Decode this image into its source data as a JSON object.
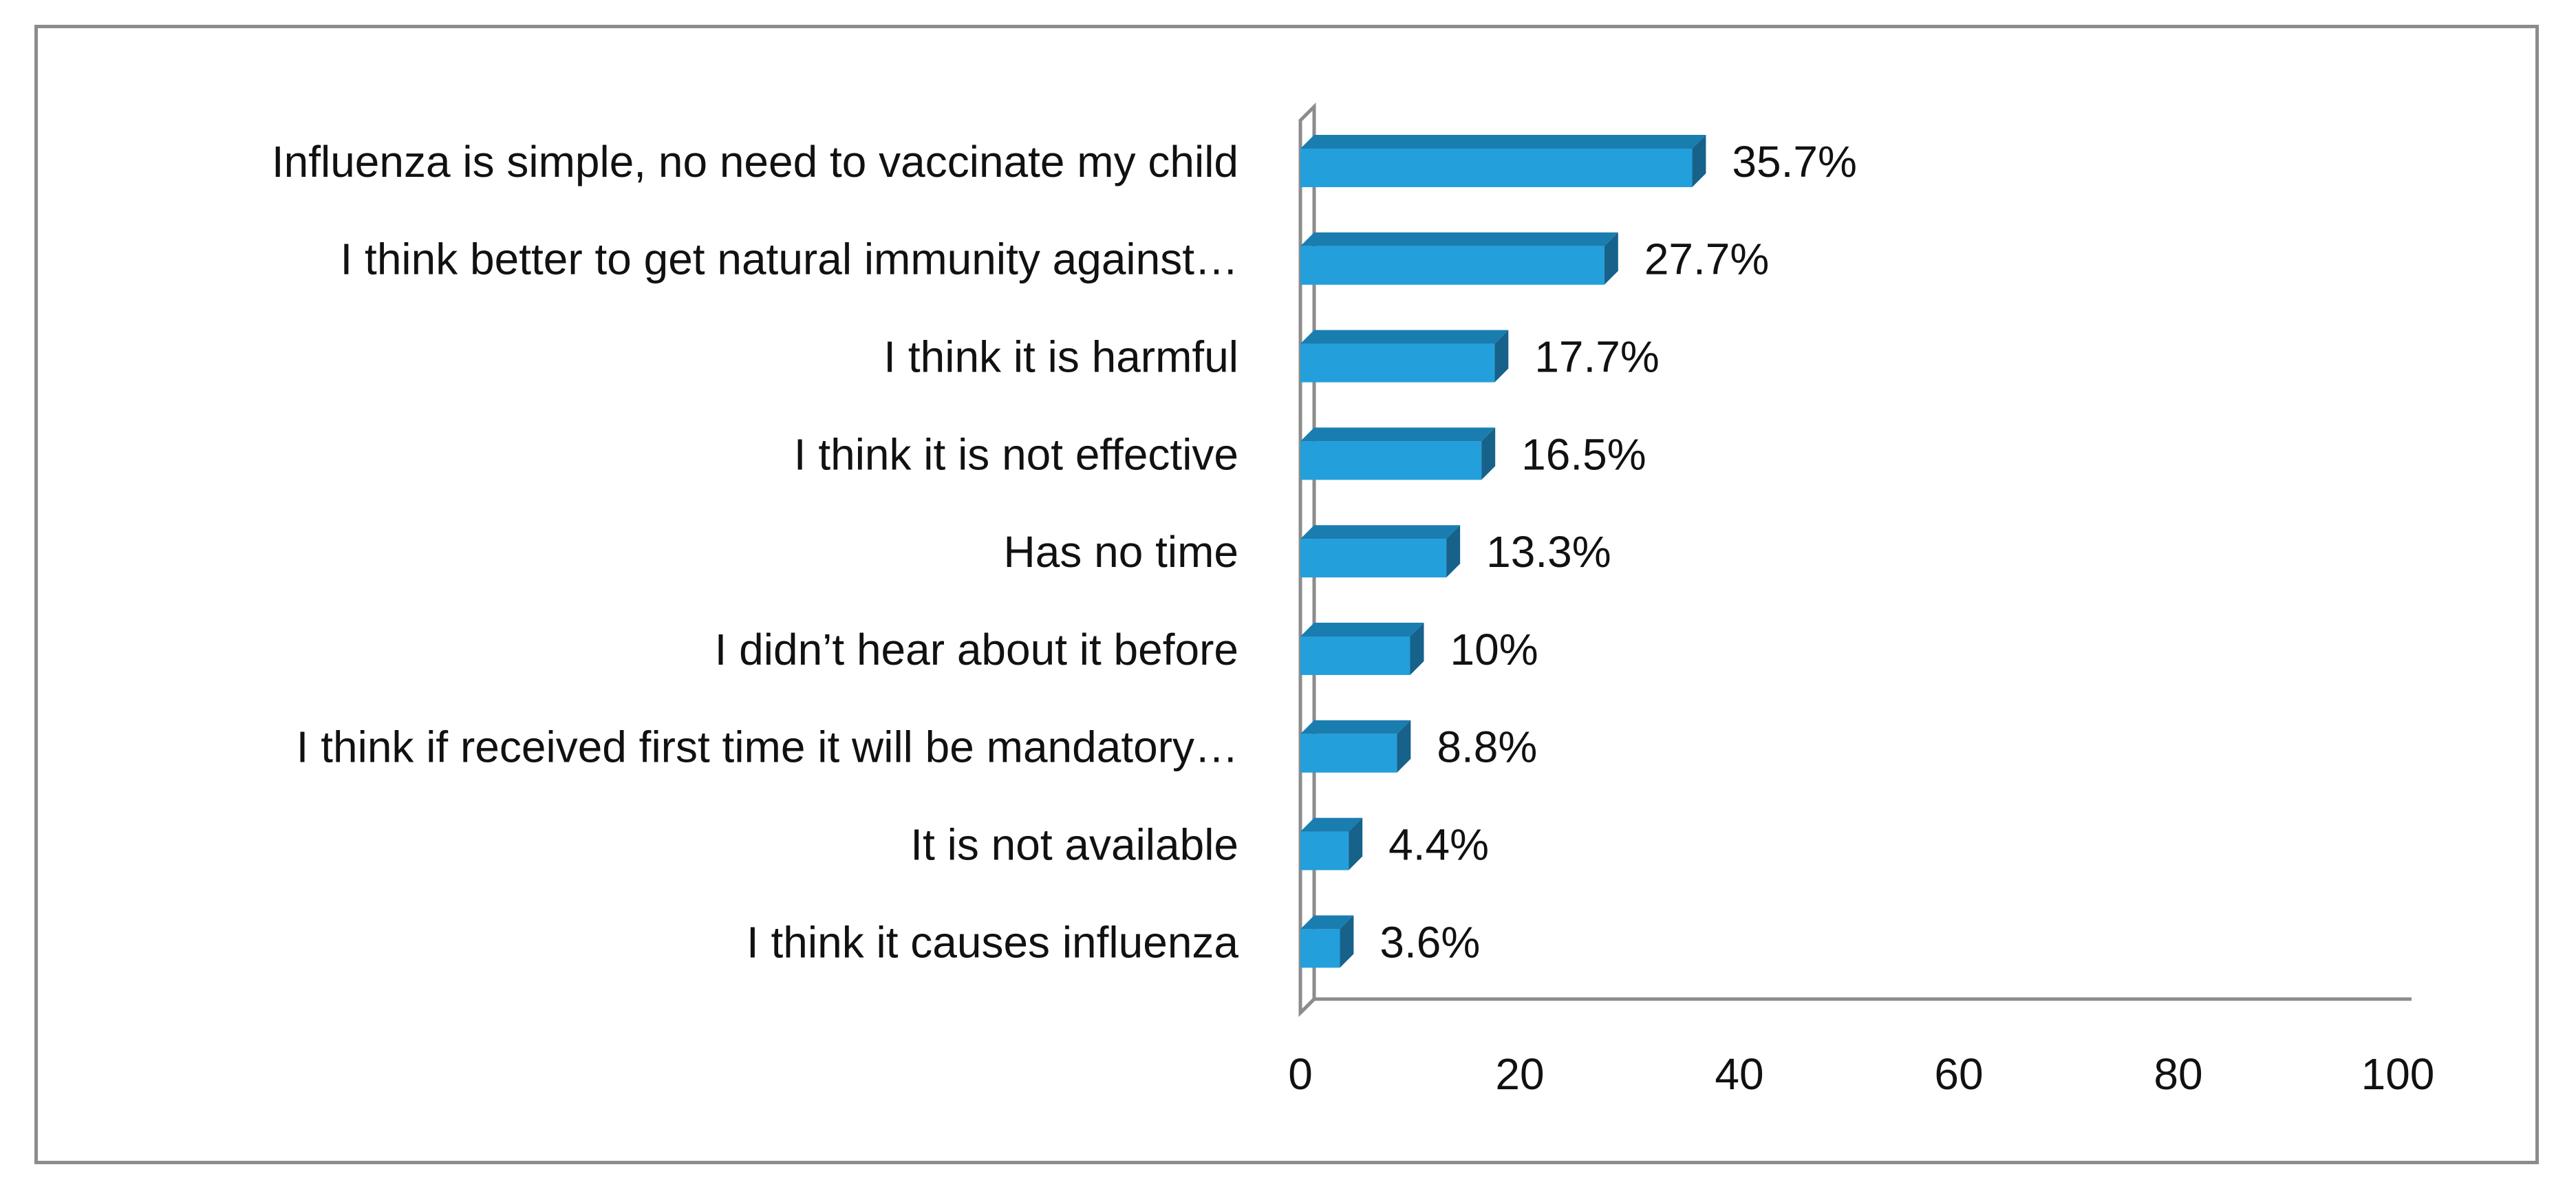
{
  "chart_data": {
    "type": "bar",
    "orientation": "horizontal",
    "title": "",
    "xlabel": "",
    "ylabel": "",
    "xlim": [
      0,
      100
    ],
    "xticks": [
      "0",
      "20",
      "40",
      "60",
      "80",
      "100"
    ],
    "grid": false,
    "legend": "none",
    "bar_color": "#239fdb",
    "bar_side_color": "#16628a",
    "bar_top_color": "#1a7db0",
    "categories": [
      "Influenza is simple, no need to vaccinate my child",
      "I think better to get natural immunity against…",
      "I think it is harmful",
      "I think it is not effective",
      "Has no time",
      "I didn’t hear about it before",
      "I think if received first time it will be mandatory…",
      "It is not available",
      "I think it causes influenza"
    ],
    "values": [
      35.7,
      27.7,
      17.7,
      16.5,
      13.3,
      10,
      8.8,
      4.4,
      3.6
    ],
    "data_labels": [
      "35.7%",
      "27.7%",
      "17.7%",
      "16.5%",
      "13.3%",
      "10%",
      "8.8%",
      "4.4%",
      "3.6%"
    ]
  }
}
